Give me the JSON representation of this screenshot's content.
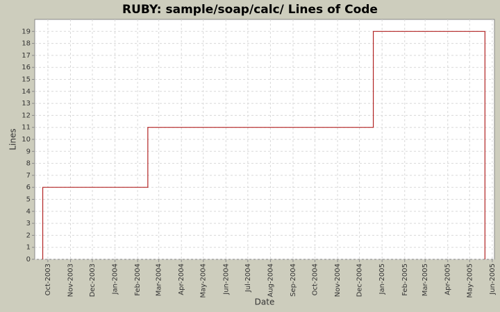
{
  "chart_data": {
    "type": "line",
    "step": "post",
    "title": "RUBY: sample/soap/calc/ Lines of Code",
    "xlabel": "Date",
    "ylabel": "Lines",
    "x": [
      "2003-09-24",
      "2004-02-15",
      "2004-12-20",
      "2005-05-22"
    ],
    "series": [
      {
        "name": "Lines",
        "color": "#b22222",
        "values": [
          6,
          11,
          19,
          0
        ]
      }
    ],
    "xlim": [
      "2003-09-13",
      "2005-06-04"
    ],
    "xticks": [
      {
        "value": "2003-10-01",
        "label": "Oct-2003"
      },
      {
        "value": "2003-11-01",
        "label": "Nov-2003"
      },
      {
        "value": "2003-12-01",
        "label": "Dec-2003"
      },
      {
        "value": "2004-01-01",
        "label": "Jan-2004"
      },
      {
        "value": "2004-02-01",
        "label": "Feb-2004"
      },
      {
        "value": "2004-03-01",
        "label": "Mar-2004"
      },
      {
        "value": "2004-04-01",
        "label": "Apr-2004"
      },
      {
        "value": "2004-05-01",
        "label": "May-2004"
      },
      {
        "value": "2004-06-01",
        "label": "Jun-2004"
      },
      {
        "value": "2004-07-01",
        "label": "Jul-2004"
      },
      {
        "value": "2004-08-01",
        "label": "Aug-2004"
      },
      {
        "value": "2004-09-01",
        "label": "Sep-2004"
      },
      {
        "value": "2004-10-01",
        "label": "Oct-2004"
      },
      {
        "value": "2004-11-01",
        "label": "Nov-2004"
      },
      {
        "value": "2004-12-01",
        "label": "Dec-2004"
      },
      {
        "value": "2005-01-01",
        "label": "Jan-2005"
      },
      {
        "value": "2005-02-01",
        "label": "Feb-2005"
      },
      {
        "value": "2005-03-01",
        "label": "Mar-2005"
      },
      {
        "value": "2005-04-01",
        "label": "Apr-2005"
      },
      {
        "value": "2005-05-01",
        "label": "May-2005"
      },
      {
        "value": "2005-06-01",
        "label": "Jun-2005"
      }
    ],
    "ylim": [
      0,
      20
    ],
    "yticks": [
      0,
      1,
      2,
      3,
      4,
      5,
      6,
      7,
      8,
      9,
      10,
      11,
      12,
      13,
      14,
      15,
      16,
      17,
      18,
      19
    ],
    "grid": true
  }
}
